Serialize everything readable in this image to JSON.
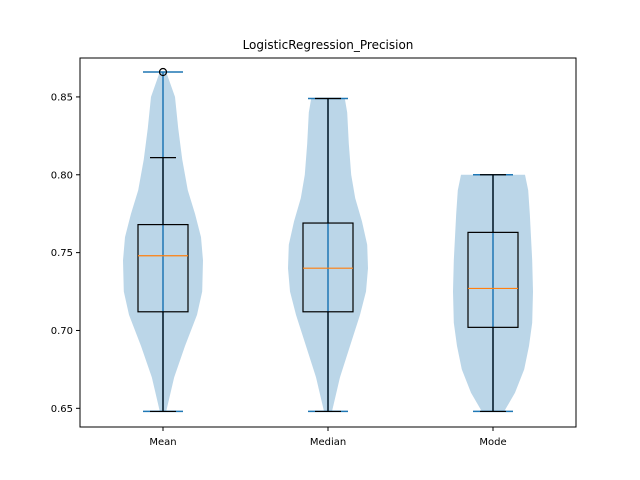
{
  "chart_data": {
    "type": "violin+box",
    "title": "LogisticRegression_Precision",
    "xlabel": "",
    "ylabel": "",
    "categories": [
      "Mean",
      "Median",
      "Mode"
    ],
    "ylim": [
      0.638,
      0.875
    ],
    "yticks": [
      0.65,
      0.7,
      0.75,
      0.8,
      0.85
    ],
    "ytick_labels": [
      "0.65",
      "0.70",
      "0.75",
      "0.80",
      "0.85"
    ],
    "grid": false,
    "legend": "none",
    "colors": {
      "violin_fill": "#1f77b4",
      "violin_stat_lines": "#1f77b4",
      "median_line": "#ff7f0e",
      "box_line": "#000000",
      "frame": "#000000"
    },
    "violins": [
      {
        "category": "Mean",
        "min": 0.648,
        "max": 0.866,
        "profile": [
          [
            0.648,
            0.08
          ],
          [
            0.67,
            0.28
          ],
          [
            0.69,
            0.55
          ],
          [
            0.71,
            0.85
          ],
          [
            0.725,
            0.98
          ],
          [
            0.745,
            1.0
          ],
          [
            0.76,
            0.95
          ],
          [
            0.775,
            0.8
          ],
          [
            0.79,
            0.62
          ],
          [
            0.81,
            0.48
          ],
          [
            0.83,
            0.38
          ],
          [
            0.85,
            0.3
          ],
          [
            0.866,
            0.08
          ]
        ]
      },
      {
        "category": "Median",
        "min": 0.648,
        "max": 0.849,
        "profile": [
          [
            0.648,
            0.1
          ],
          [
            0.67,
            0.3
          ],
          [
            0.69,
            0.55
          ],
          [
            0.71,
            0.8
          ],
          [
            0.725,
            0.95
          ],
          [
            0.74,
            1.0
          ],
          [
            0.755,
            0.98
          ],
          [
            0.77,
            0.85
          ],
          [
            0.785,
            0.68
          ],
          [
            0.8,
            0.58
          ],
          [
            0.82,
            0.52
          ],
          [
            0.84,
            0.48
          ],
          [
            0.849,
            0.42
          ]
        ]
      },
      {
        "category": "Mode",
        "min": 0.648,
        "max": 0.8,
        "profile": [
          [
            0.648,
            0.28
          ],
          [
            0.66,
            0.55
          ],
          [
            0.675,
            0.78
          ],
          [
            0.69,
            0.9
          ],
          [
            0.705,
            0.98
          ],
          [
            0.725,
            1.0
          ],
          [
            0.745,
            0.98
          ],
          [
            0.76,
            0.95
          ],
          [
            0.775,
            0.92
          ],
          [
            0.79,
            0.88
          ],
          [
            0.8,
            0.8
          ]
        ]
      }
    ],
    "boxes": [
      {
        "category": "Mean",
        "whisker_low": 0.648,
        "q1": 0.712,
        "median": 0.748,
        "q3": 0.768,
        "whisker_high": 0.811,
        "outliers": [
          0.866
        ]
      },
      {
        "category": "Median",
        "whisker_low": 0.648,
        "q1": 0.712,
        "median": 0.74,
        "q3": 0.769,
        "whisker_high": 0.849,
        "outliers": []
      },
      {
        "category": "Mode",
        "whisker_low": 0.648,
        "q1": 0.702,
        "median": 0.727,
        "q3": 0.763,
        "whisker_high": 0.8,
        "outliers": []
      }
    ]
  }
}
